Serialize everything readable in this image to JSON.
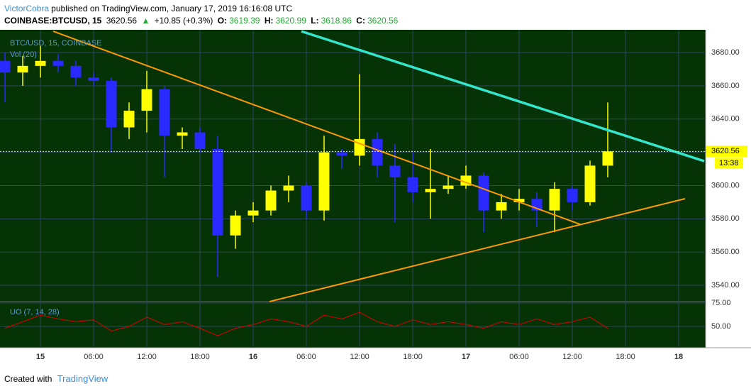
{
  "header": {
    "author": "VictorCobra",
    "published": "published on TradingView.com, January 17, 2019 16:16:08 UTC",
    "symbol": "COINBASE:BTCUSD, 15",
    "last": "3620.56",
    "arrow": "▲",
    "change": "+10.85 (+0.3%)",
    "o_label": "O:",
    "o": "3619.39",
    "h_label": "H:",
    "h": "3620.99",
    "l_label": "L:",
    "l": "3618.86",
    "c_label": "C:",
    "c": "3620.56"
  },
  "chart_data": {
    "type": "candlestick",
    "legend": "BTC/USD, 15, COINBASE",
    "volume_label": "Vol (20)",
    "up_color": "#ffff00",
    "down_color": "#2a2aff",
    "grid": true,
    "x": [
      -4,
      -2,
      0,
      2,
      4,
      6,
      8,
      10,
      12,
      14,
      16,
      18,
      20,
      22,
      24,
      26,
      28,
      30,
      32,
      34,
      36,
      38,
      40,
      42,
      44,
      46,
      48,
      50,
      52,
      54,
      56,
      58,
      60,
      62,
      64
    ],
    "open": [
      3675,
      3668,
      3672,
      3675,
      3672,
      3665,
      3663,
      3635,
      3645,
      3658,
      3630,
      3632,
      3622,
      3570,
      3582,
      3585,
      3597,
      3600,
      3585,
      3620,
      3618,
      3628,
      3612,
      3605,
      3596,
      3598,
      3600,
      3606,
      3585,
      3590,
      3592,
      3585,
      3598,
      3590,
      3612
    ],
    "high": [
      3680,
      3678,
      3684,
      3679,
      3675,
      3668,
      3665,
      3650,
      3669,
      3660,
      3635,
      3635,
      3630,
      3585,
      3590,
      3600,
      3606,
      3602,
      3630,
      3622,
      3667,
      3632,
      3625,
      3620,
      3622,
      3606,
      3612,
      3608,
      3595,
      3598,
      3596,
      3602,
      3600,
      3615,
      3650
    ],
    "low": [
      3650,
      3660,
      3665,
      3668,
      3660,
      3660,
      3620,
      3628,
      3632,
      3605,
      3622,
      3620,
      3545,
      3562,
      3578,
      3582,
      3590,
      3580,
      3579,
      3610,
      3612,
      3605,
      3578,
      3590,
      3580,
      3595,
      3598,
      3572,
      3580,
      3585,
      3575,
      3572,
      3585,
      3588,
      3605
    ],
    "close": [
      3668,
      3672,
      3675,
      3672,
      3665,
      3663,
      3635,
      3645,
      3658,
      3630,
      3632,
      3622,
      3570,
      3582,
      3585,
      3597,
      3600,
      3585,
      3620,
      3618,
      3628,
      3612,
      3605,
      3596,
      3598,
      3600,
      3606,
      3585,
      3590,
      3592,
      3585,
      3598,
      3590,
      3612,
      3620.56
    ],
    "xlim": [
      -4.56,
      75.04
    ],
    "xticks": [
      {
        "value": 0,
        "label": "15"
      },
      {
        "value": 6,
        "label": "06:00"
      },
      {
        "value": 12,
        "label": "12:00"
      },
      {
        "value": 18,
        "label": "18:00"
      },
      {
        "value": 24,
        "label": "16"
      },
      {
        "value": 30,
        "label": "06:00"
      },
      {
        "value": 36,
        "label": "12:00"
      },
      {
        "value": 42,
        "label": "18:00"
      },
      {
        "value": 48,
        "label": "17"
      },
      {
        "value": 54,
        "label": "06:00"
      },
      {
        "value": 60,
        "label": "12:00"
      },
      {
        "value": 66,
        "label": "18:00"
      },
      {
        "value": 72,
        "label": "18"
      }
    ],
    "ylim": [
      3530.2,
      3693.7
    ],
    "yticks": [
      {
        "value": 3540,
        "label": "3540.00"
      },
      {
        "value": 3560,
        "label": "3560.00"
      },
      {
        "value": 3580,
        "label": "3580.00"
      },
      {
        "value": 3600,
        "label": "3600.00"
      },
      {
        "value": 3620,
        "label": "3620.00"
      },
      {
        "value": 3640,
        "label": "3640.00"
      },
      {
        "value": 3660,
        "label": "3660.00"
      },
      {
        "value": 3680,
        "label": "3680.00"
      }
    ],
    "last_price": {
      "value": 3620.56,
      "label": "3620.56",
      "countdown": "13:38",
      "color": "#ffff00"
    },
    "trendlines": [
      {
        "color": "#33e6cc",
        "x": [
          29.44,
          74.88
        ],
        "y": [
          3692.8,
          3614.7
        ]
      },
      {
        "color": "#ff9900",
        "x": [
          1.44,
          60.88
        ],
        "y": [
          3692.8,
          3576.7
        ]
      },
      {
        "color": "#ff9900",
        "x": [
          25.84,
          72.72
        ],
        "y": [
          3530.2,
          3592.1
        ]
      }
    ],
    "indicator": {
      "type": "line",
      "name": "UO (7, 14, 28)",
      "color": "#e00000",
      "values": [
        48,
        55,
        62,
        58,
        55,
        57,
        45,
        50,
        60,
        52,
        55,
        48,
        40,
        48,
        52,
        58,
        55,
        50,
        62,
        58,
        65,
        55,
        50,
        57,
        52,
        55,
        52,
        48,
        55,
        52,
        58,
        52,
        55,
        60,
        48
      ],
      "ylim": [
        27.3,
        76.5
      ],
      "yticks": [
        {
          "value": 50,
          "label": "50.00"
        },
        {
          "value": 75,
          "label": "75.00"
        }
      ]
    }
  },
  "footer": {
    "created": "Created with",
    "brand": "TradingView"
  }
}
